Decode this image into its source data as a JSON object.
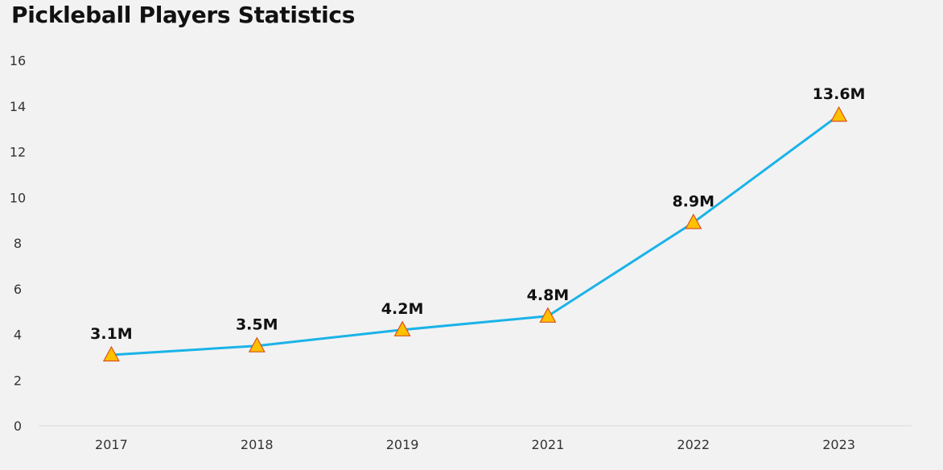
{
  "chart_data": {
    "type": "line",
    "title": "Pickleball Players Statistics",
    "xlabel": "",
    "ylabel": "",
    "categories": [
      "2017",
      "2018",
      "2019",
      "2021",
      "2022",
      "2023"
    ],
    "series": [
      {
        "values": [
          3.1,
          3.5,
          4.2,
          4.8,
          8.9,
          13.6
        ],
        "data_labels": [
          "3.1M",
          "3.5M",
          "4.2M",
          "4.8M",
          "8.9M",
          "13.6M"
        ],
        "color": "#1ab3e8",
        "marker": "triangle",
        "marker_fill": "#ffc000",
        "marker_stroke": "#d9531e"
      }
    ],
    "ylim": [
      0,
      16
    ],
    "yticks": [
      0,
      2,
      4,
      6,
      8,
      10,
      12,
      14,
      16
    ],
    "grid": false,
    "legend": "none"
  },
  "colors": {
    "background": "#f2f2f2",
    "axis_line": "#d9d9d9"
  }
}
